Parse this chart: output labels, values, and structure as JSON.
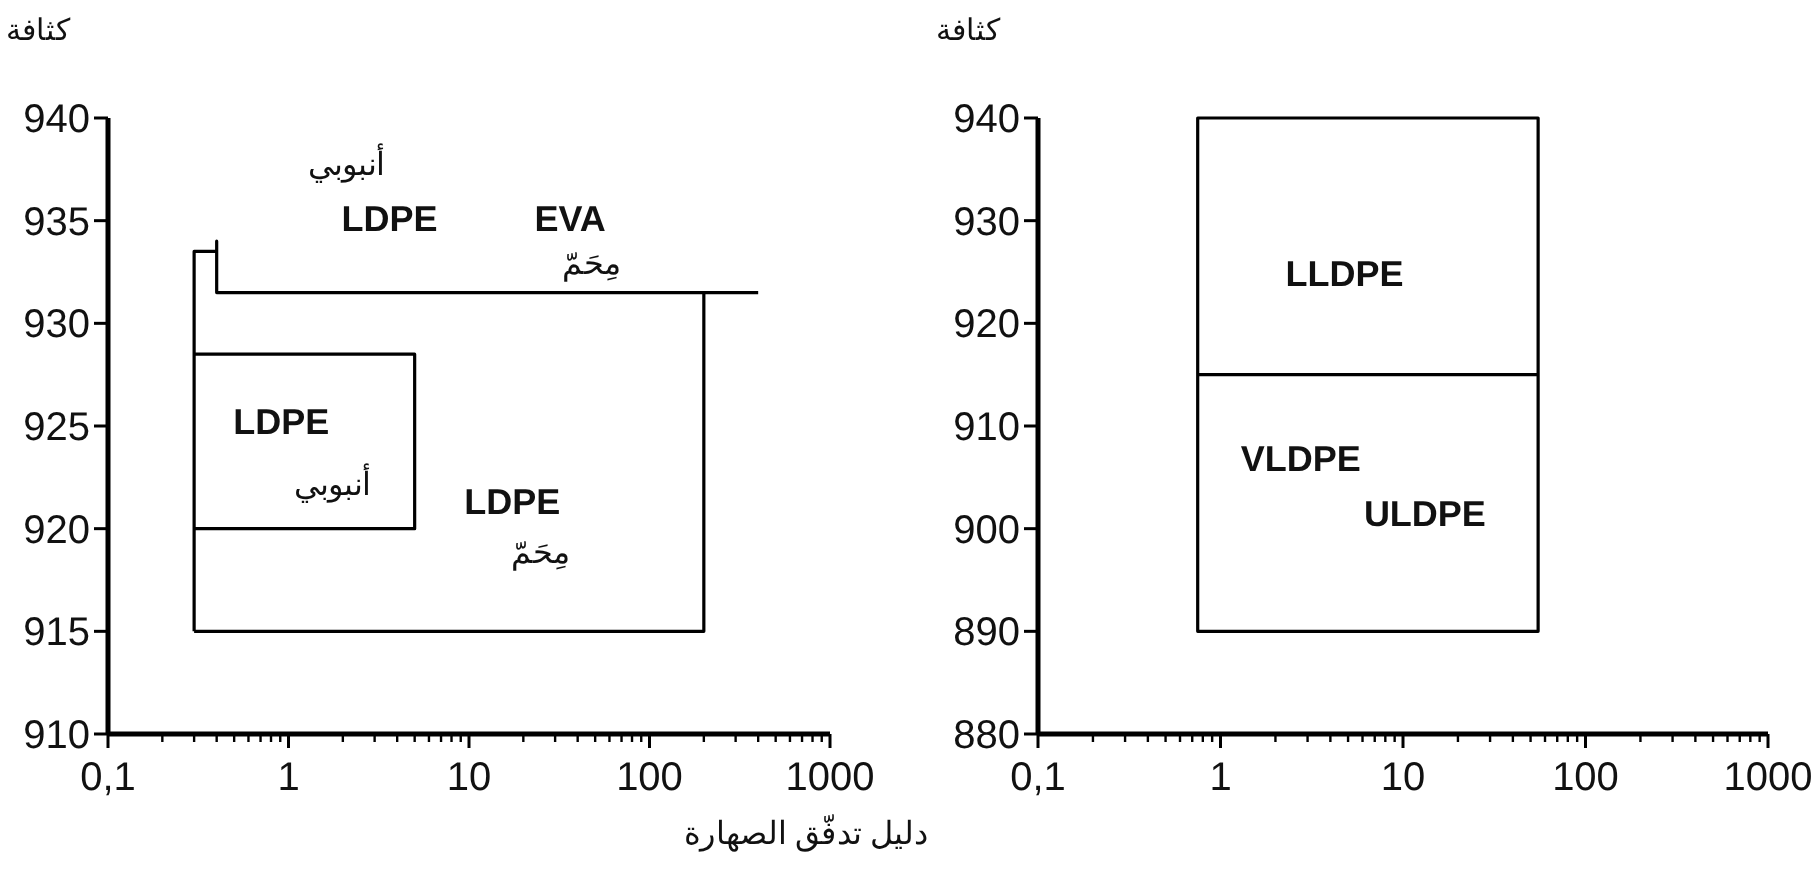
{
  "chart_data": [
    {
      "type": "line",
      "ylabel": "كثافة",
      "log": "x",
      "xlim": [
        0.1,
        1000
      ],
      "xticks": [
        {
          "value": 0.1,
          "label": "0,1"
        },
        1,
        10,
        100,
        1000
      ],
      "ylim": [
        910,
        940
      ],
      "yticks": [
        910,
        915,
        920,
        925,
        930,
        935,
        940
      ],
      "series": [
        {
          "color": "#000000",
          "x": [
            0.3,
            0.3,
            0.4,
            0.4,
            0.4,
            400
          ],
          "values": [
            915,
            933.5,
            933.5,
            934,
            931.5,
            931.5
          ]
        },
        {
          "color": "#000000",
          "x": [
            200,
            200,
            0.3
          ],
          "values": [
            931.5,
            915,
            915
          ]
        },
        {
          "color": "#000000",
          "x": [
            0.3,
            5,
            5,
            0.3
          ],
          "values": [
            928.5,
            928.5,
            920,
            920
          ]
        }
      ],
      "annotations": [
        "أنبوبي",
        "LDPE",
        "EVA",
        "مِحَمّ",
        "LDPE",
        "أنبوبي",
        "LDPE",
        "مِحَمّ"
      ]
    },
    {
      "type": "line",
      "ylabel": "كثافة",
      "xlabel": "دليل تدفّق الصهارة",
      "log": "x",
      "xlim": [
        0.1,
        1000
      ],
      "xticks": [
        {
          "value": 0.1,
          "label": "0,1"
        },
        1,
        10,
        100,
        1000
      ],
      "ylim": [
        880,
        940
      ],
      "yticks": [
        880,
        890,
        900,
        910,
        920,
        930,
        940
      ],
      "series": [
        {
          "color": "#000000",
          "x": [
            55,
            0.75,
            0.75,
            55,
            55,
            0.75,
            0.75
          ],
          "values": [
            915,
            915,
            940,
            940,
            890,
            890,
            915
          ]
        }
      ],
      "annotations": [
        "LLDPE",
        "VLDPE",
        "ULDPE"
      ]
    }
  ]
}
